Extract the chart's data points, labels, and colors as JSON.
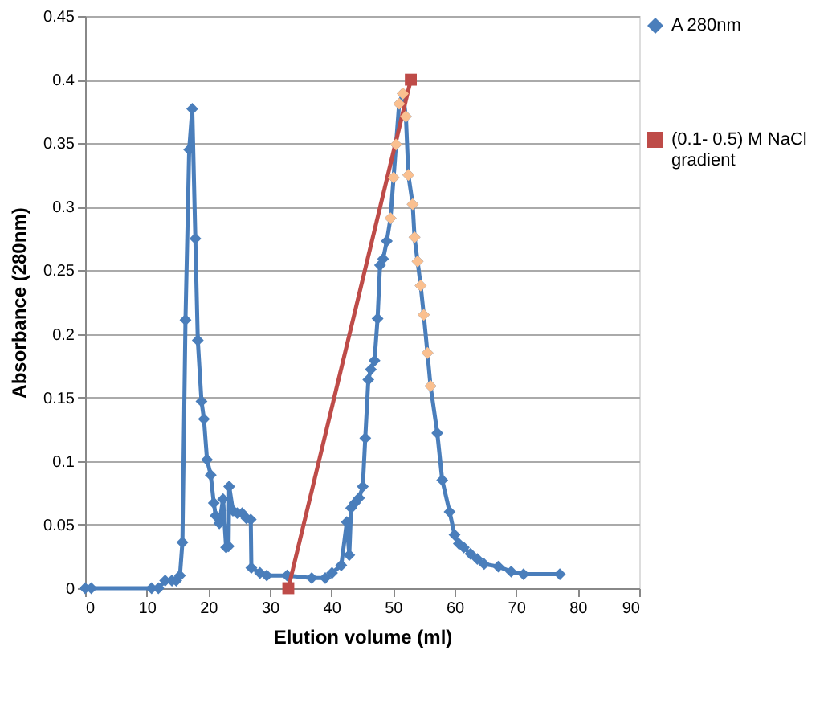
{
  "chart_data": {
    "type": "line",
    "xlabel": "Elution volume (ml)",
    "ylabel": "Absorbance (280nm)",
    "xlim": [
      0,
      90
    ],
    "xticks": [
      0,
      10,
      20,
      30,
      40,
      50,
      60,
      70,
      80,
      90
    ],
    "ylim": [
      0,
      0.45
    ],
    "yticks": [
      0,
      0.05,
      0.1,
      0.15,
      0.2,
      0.25,
      0.3,
      0.35,
      0.4,
      0.45
    ],
    "grid": "y",
    "legend": "right",
    "line_style": "solid",
    "series": [
      {
        "name": "A 280nm",
        "marker": "diamond",
        "color": "#4a7ebb",
        "x": [
          0,
          1,
          10.8,
          11.9,
          13,
          14.1,
          14.8,
          15.4,
          15.8,
          16.3,
          16.9,
          17.4,
          17.9,
          18.3,
          18.9,
          19.3,
          19.8,
          20.4,
          20.9,
          21.2,
          21.8,
          22.4,
          22.9,
          23.3,
          23.4,
          24,
          24.7,
          25.5,
          26.2,
          26.9,
          27,
          28.4,
          29.5,
          32.8,
          36.8,
          39,
          40.1,
          41.6,
          42.5,
          42.9,
          43.2,
          43.8,
          44.5,
          45.1,
          45.5,
          46,
          46.4,
          47,
          47.5,
          47.9,
          48.4,
          49,
          49.6,
          50.1,
          50.5,
          51,
          51.6,
          52.1,
          52.5,
          53.2,
          53.5,
          54,
          54.5,
          55,
          55.6,
          56.1,
          57.2,
          58,
          59.2,
          60,
          60.7,
          61.5,
          62.6,
          63.7,
          64.8,
          67.1,
          69.2,
          71.2,
          77.1
        ],
        "values": [
          0,
          0,
          0,
          0,
          0.006,
          0.006,
          0.006,
          0.01,
          0.036,
          0.211,
          0.345,
          0.377,
          0.275,
          0.195,
          0.147,
          0.133,
          0.101,
          0.089,
          0.067,
          0.057,
          0.051,
          0.07,
          0.032,
          0.033,
          0.08,
          0.061,
          0.059,
          0.059,
          0.055,
          0.054,
          0.016,
          0.012,
          0.01,
          0.01,
          0.008,
          0.008,
          0.012,
          0.018,
          0.052,
          0.026,
          0.063,
          0.067,
          0.071,
          0.08,
          0.118,
          0.164,
          0.172,
          0.179,
          0.212,
          0.254,
          0.259,
          0.273,
          0.291,
          0.323,
          0.349,
          0.381,
          0.389,
          0.371,
          0.325,
          0.302,
          0.276,
          0.257,
          0.238,
          0.215,
          0.185,
          0.159,
          0.122,
          0.085,
          0.06,
          0.042,
          0.035,
          0.032,
          0.027,
          0.023,
          0.019,
          0.017,
          0.013,
          0.011,
          0.011
        ]
      },
      {
        "name": "(0.1- 0.5) M NaCl gradient",
        "marker": "square",
        "color": "#be4b48",
        "x": [
          33,
          52.9
        ],
        "values": [
          0,
          0.4
        ]
      },
      {
        "type": "scatter",
        "marker": "diamond",
        "color": "#fac090",
        "x": [
          49.6,
          50.1,
          50.5,
          51,
          51.6,
          52.1,
          52.5,
          53.2,
          53.5,
          54,
          54.5,
          55,
          55.6,
          56.1
        ],
        "values": [
          0.291,
          0.323,
          0.349,
          0.381,
          0.389,
          0.371,
          0.325,
          0.302,
          0.276,
          0.257,
          0.238,
          0.215,
          0.185,
          0.159
        ]
      }
    ]
  }
}
